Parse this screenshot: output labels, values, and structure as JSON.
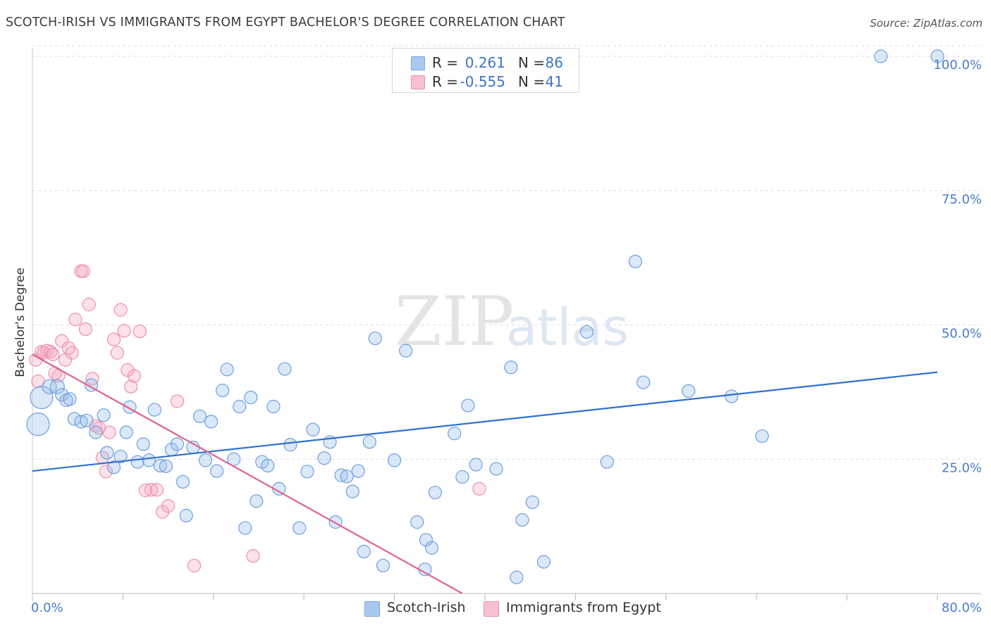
{
  "header": {
    "title": "SCOTCH-IRISH VS IMMIGRANTS FROM EGYPT BACHELOR'S DEGREE CORRELATION CHART",
    "source": "Source: ZipAtlas.com"
  },
  "watermark": {
    "zip": "ZIP",
    "atlas": "atlas"
  },
  "legend": {
    "rows": [
      {
        "r_label": "R =",
        "r_value": "0.261",
        "n_label": "N =",
        "n_value": "86",
        "color": "#a9c8f0",
        "border": "#7aa6e0"
      },
      {
        "r_label": "R =",
        "r_value": "-0.555",
        "n_label": "N =",
        "n_value": "41",
        "color": "#f7bfd0",
        "border": "#ea91ad"
      }
    ]
  },
  "bottom_legend": {
    "items": [
      {
        "label": "Scotch-Irish",
        "color": "#a9c8f0",
        "border": "#7aa6e0"
      },
      {
        "label": "Immigrants from Egypt",
        "color": "#f7bfd0",
        "border": "#ea91ad"
      }
    ]
  },
  "colors": {
    "blue_fill": "rgba(150,188,235,0.35)",
    "blue_stroke": "#6f9fde",
    "blue_line": "#2f72d0",
    "pink_fill": "rgba(245,170,195,0.35)",
    "pink_stroke": "#ee8fae",
    "pink_line": "#e0628f",
    "grid": "#dddddd",
    "tick_text": "#4a7cc9"
  },
  "chart_data": {
    "type": "scatter",
    "title": "SCOTCH-IRISH VS IMMIGRANTS FROM EGYPT BACHELOR'S DEGREE CORRELATION CHART",
    "xlabel": "",
    "ylabel": "Bachelor's Degree",
    "xlim": [
      0,
      80
    ],
    "ylim": [
      0,
      102
    ],
    "x_tick_labels": [
      "0.0%",
      "80.0%"
    ],
    "y_ticks": [
      25,
      50,
      75,
      100
    ],
    "y_tick_labels": [
      "25.0%",
      "50.0%",
      "75.0%",
      "100.0%"
    ],
    "grid": true,
    "legend_position": "top-center",
    "series": [
      {
        "name": "Scotch-Irish",
        "r": 0.261,
        "n": 86,
        "trendline": {
          "x": [
            0,
            80
          ],
          "y": [
            22.8,
            41.2
          ]
        },
        "points": [
          [
            0.5,
            31.5,
            16
          ],
          [
            0.8,
            36.5,
            16
          ],
          [
            1.5,
            38.5,
            10
          ],
          [
            2.2,
            38.5,
            10
          ],
          [
            2.6,
            37,
            9
          ],
          [
            3.0,
            36,
            9
          ],
          [
            3.3,
            36.2,
            9
          ],
          [
            3.7,
            32.5,
            9
          ],
          [
            4.3,
            32,
            9
          ],
          [
            4.8,
            32.2,
            9
          ],
          [
            5.2,
            38.8,
            9
          ],
          [
            5.6,
            30,
            9
          ],
          [
            6.3,
            33.2,
            9
          ],
          [
            6.6,
            26.2,
            9
          ],
          [
            7.2,
            23.5,
            9
          ],
          [
            7.8,
            25.5,
            9
          ],
          [
            8.3,
            30,
            9
          ],
          [
            8.6,
            34.7,
            9
          ],
          [
            9.3,
            24.5,
            9
          ],
          [
            9.8,
            27.8,
            9
          ],
          [
            10.3,
            24.8,
            9
          ],
          [
            10.8,
            34.2,
            9
          ],
          [
            11.3,
            23.8,
            9
          ],
          [
            11.8,
            23.7,
            9
          ],
          [
            12.3,
            26.8,
            9
          ],
          [
            12.8,
            27.8,
            9
          ],
          [
            13.3,
            20.8,
            9
          ],
          [
            13.6,
            14.5,
            9
          ],
          [
            14.2,
            27.2,
            9
          ],
          [
            14.8,
            33,
            9
          ],
          [
            15.3,
            24.8,
            9
          ],
          [
            15.8,
            32,
            9
          ],
          [
            16.3,
            22.8,
            9
          ],
          [
            16.8,
            37.8,
            9
          ],
          [
            17.2,
            41.7,
            9
          ],
          [
            17.8,
            25,
            9
          ],
          [
            18.3,
            34.8,
            9
          ],
          [
            18.8,
            12.2,
            9
          ],
          [
            19.3,
            36.5,
            9
          ],
          [
            19.8,
            17.2,
            9
          ],
          [
            20.3,
            24.5,
            9
          ],
          [
            20.8,
            23.8,
            9
          ],
          [
            21.3,
            34.8,
            9
          ],
          [
            21.8,
            19.5,
            9
          ],
          [
            22.3,
            41.8,
            9
          ],
          [
            22.8,
            27.7,
            9
          ],
          [
            23.6,
            12.2,
            9
          ],
          [
            24.3,
            22.7,
            9
          ],
          [
            24.8,
            30.5,
            9
          ],
          [
            25.8,
            25.2,
            9
          ],
          [
            26.3,
            28.2,
            9
          ],
          [
            26.8,
            13.3,
            9
          ],
          [
            27.3,
            22,
            9
          ],
          [
            27.8,
            21.8,
            9
          ],
          [
            28.3,
            19,
            9
          ],
          [
            28.8,
            22.8,
            9
          ],
          [
            29.3,
            7.8,
            9
          ],
          [
            29.8,
            28.2,
            9
          ],
          [
            30.3,
            47.5,
            9
          ],
          [
            31.0,
            5.2,
            9
          ],
          [
            32.0,
            24.8,
            9
          ],
          [
            33.0,
            45.2,
            9
          ],
          [
            34.0,
            13.3,
            9
          ],
          [
            34.7,
            4.5,
            9
          ],
          [
            34.8,
            10,
            9
          ],
          [
            35.3,
            8.5,
            9
          ],
          [
            35.6,
            18.8,
            9
          ],
          [
            37.3,
            29.8,
            9
          ],
          [
            38.0,
            21.7,
            9
          ],
          [
            38.5,
            35,
            9
          ],
          [
            39.2,
            24,
            9
          ],
          [
            41.0,
            23.2,
            9
          ],
          [
            42.3,
            42.1,
            9
          ],
          [
            42.8,
            3,
            9
          ],
          [
            43.3,
            13.7,
            9
          ],
          [
            44.2,
            17,
            9
          ],
          [
            45.2,
            5.9,
            9
          ],
          [
            49.0,
            48.7,
            9
          ],
          [
            50.8,
            24.5,
            9
          ],
          [
            53.3,
            61.8,
            9
          ],
          [
            54.0,
            39.3,
            9
          ],
          [
            58.0,
            37.7,
            9
          ],
          [
            61.8,
            36.7,
            9
          ],
          [
            64.5,
            29.3,
            9
          ],
          [
            75.0,
            100,
            9
          ],
          [
            80.0,
            100,
            9
          ]
        ]
      },
      {
        "name": "Immigrants from Egypt",
        "r": -0.555,
        "n": 41,
        "trendline": {
          "x": [
            0,
            38
          ],
          "y": [
            44.5,
            0
          ]
        },
        "points": [
          [
            0.3,
            43.5,
            9
          ],
          [
            0.5,
            39.5,
            9
          ],
          [
            0.8,
            45,
            9
          ],
          [
            1.0,
            44.8,
            9
          ],
          [
            1.3,
            45.2,
            9
          ],
          [
            1.6,
            45,
            9
          ],
          [
            1.8,
            44.5,
            9
          ],
          [
            2.0,
            41,
            9
          ],
          [
            2.3,
            40.5,
            9
          ],
          [
            2.6,
            47,
            9
          ],
          [
            2.9,
            43.5,
            9
          ],
          [
            3.2,
            45.7,
            9
          ],
          [
            3.5,
            44.8,
            9
          ],
          [
            3.8,
            51,
            9
          ],
          [
            4.3,
            60,
            9
          ],
          [
            4.7,
            49.2,
            9
          ],
          [
            5.0,
            53.8,
            9
          ],
          [
            5.3,
            40,
            9
          ],
          [
            5.6,
            31.2,
            9
          ],
          [
            5.9,
            30.8,
            9
          ],
          [
            6.2,
            25.3,
            9
          ],
          [
            6.5,
            22.7,
            9
          ],
          [
            6.8,
            30,
            9
          ],
          [
            7.2,
            47.3,
            9
          ],
          [
            7.5,
            44.8,
            9
          ],
          [
            7.8,
            52.8,
            9
          ],
          [
            8.1,
            48.9,
            9
          ],
          [
            8.4,
            41.6,
            9
          ],
          [
            8.7,
            38.5,
            9
          ],
          [
            9.0,
            40.5,
            9
          ],
          [
            9.5,
            48.8,
            9
          ],
          [
            10.0,
            19.2,
            9
          ],
          [
            10.5,
            19.3,
            9
          ],
          [
            11.0,
            19.3,
            9
          ],
          [
            11.5,
            15.2,
            9
          ],
          [
            12.0,
            16.3,
            9
          ],
          [
            4.5,
            60,
            9
          ],
          [
            12.8,
            35.8,
            9
          ],
          [
            14.3,
            5.2,
            9
          ],
          [
            19.5,
            7,
            9
          ],
          [
            39.5,
            19.5,
            9
          ]
        ]
      }
    ]
  }
}
